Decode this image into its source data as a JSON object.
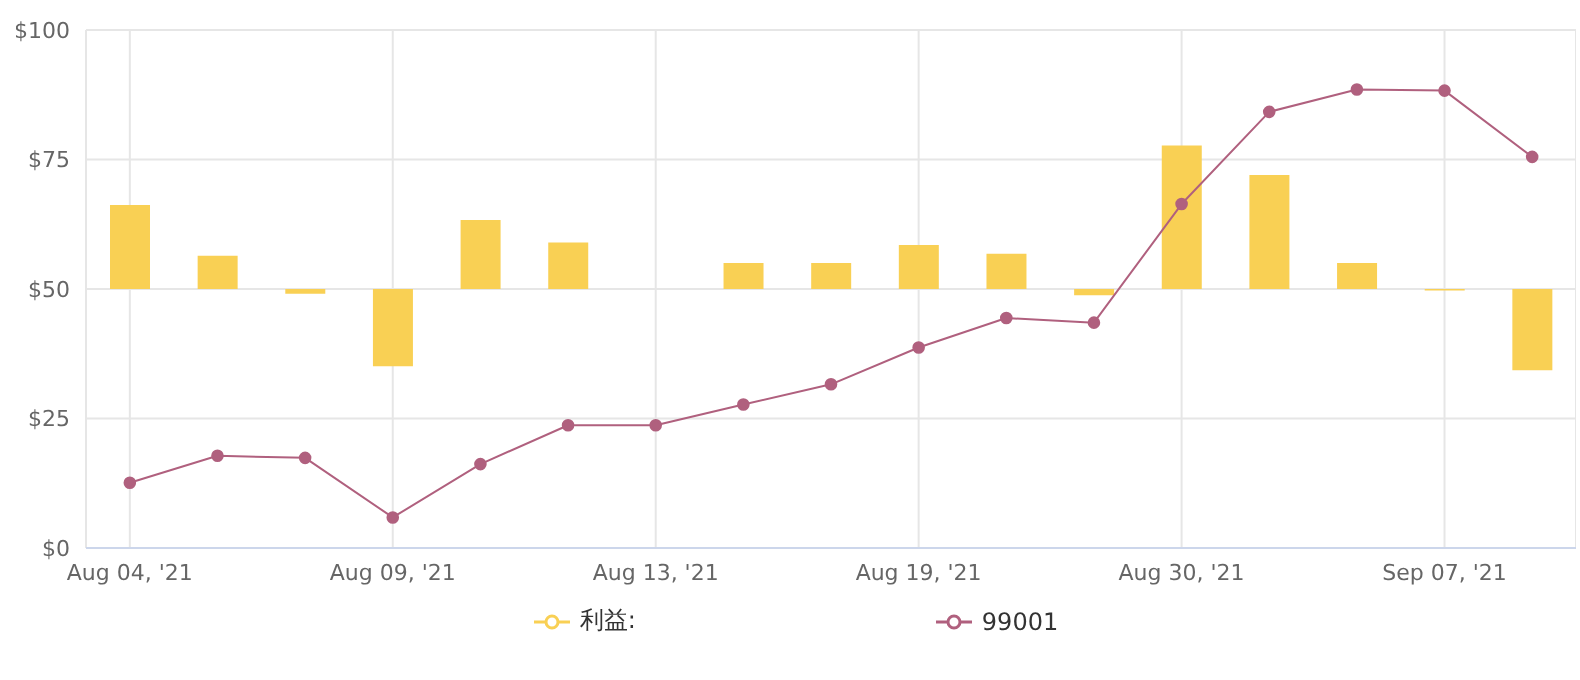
{
  "chart_data": {
    "type": "bar",
    "categories": [
      "Aug 04, '21",
      null,
      null,
      "Aug 09, '21",
      null,
      null,
      "Aug 13, '21",
      null,
      null,
      "Aug 19, '21",
      null,
      null,
      "Aug 30, '21",
      null,
      null,
      "Sep 07, '21",
      null
    ],
    "series": [
      {
        "name": "利益:",
        "color": "#f9d054",
        "base": [
          50,
          50,
          50,
          50,
          50,
          50,
          null,
          50,
          50,
          50,
          50,
          50,
          50,
          50,
          50,
          50,
          50
        ],
        "values": [
          16.2,
          6.4,
          -0.9,
          -14.9,
          13.3,
          9,
          null,
          5,
          5,
          8.5,
          6.8,
          -1.2,
          27.7,
          22,
          5,
          -0.3,
          -15.7
        ]
      },
      {
        "name": "99001",
        "type": "line",
        "color": "#b0607e",
        "values": [
          12.6,
          17.8,
          17.4,
          5.9,
          16.2,
          23.7,
          23.7,
          27.7,
          31.6,
          38.7,
          44.4,
          43.5,
          66.4,
          84.2,
          88.5,
          88.3,
          75.5
        ]
      }
    ],
    "ylim": [
      0,
      100
    ],
    "yticks": [
      {
        "value": 0,
        "label": "$0"
      },
      {
        "value": 25,
        "label": "$25"
      },
      {
        "value": 50,
        "label": "$50"
      },
      {
        "value": 75,
        "label": "$75"
      },
      {
        "value": 100,
        "label": "$100"
      }
    ],
    "grid": true,
    "legend": "bottom",
    "marker": "circle",
    "line_style": "solid"
  }
}
